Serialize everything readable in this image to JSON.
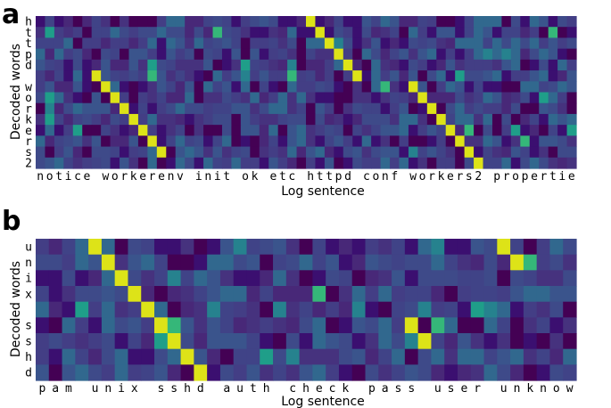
{
  "chart_data": [
    {
      "type": "heatmap",
      "panel_label": "a",
      "xlabel": "Log sentence",
      "ylabel": "Decoded words",
      "x": [
        "n",
        "o",
        "t",
        "i",
        "c",
        "e",
        " ",
        "w",
        "o",
        "r",
        "k",
        "e",
        "r",
        "e",
        "n",
        "v",
        " ",
        "i",
        "n",
        "i",
        "t",
        " ",
        "o",
        "k",
        " ",
        "e",
        "t",
        "c",
        " ",
        "h",
        "t",
        "t",
        "p",
        "d",
        " ",
        "c",
        "o",
        "n",
        "f",
        " ",
        "w",
        "o",
        "r",
        "k",
        "e",
        "r",
        "s",
        "2",
        " ",
        "p",
        "r",
        "o",
        "p",
        "e",
        "r",
        "t",
        "i",
        "e"
      ],
      "y": [
        "h",
        "t",
        "t",
        "p",
        "d",
        " ",
        "w",
        "o",
        "r",
        "k",
        "e",
        "r",
        "s",
        "2"
      ],
      "colormap": "viridis",
      "highlight": [
        [
          0,
          29
        ],
        [
          1,
          30
        ],
        [
          2,
          31
        ],
        [
          3,
          32
        ],
        [
          4,
          33
        ],
        [
          5,
          34
        ],
        [
          6,
          40
        ],
        [
          7,
          41
        ],
        [
          8,
          42
        ],
        [
          9,
          43
        ],
        [
          10,
          44
        ],
        [
          11,
          45
        ],
        [
          12,
          46
        ],
        [
          13,
          47
        ],
        [
          6,
          7
        ],
        [
          7,
          8
        ],
        [
          8,
          9
        ],
        [
          9,
          10
        ],
        [
          10,
          11
        ],
        [
          11,
          12
        ],
        [
          5,
          6
        ],
        [
          12,
          13
        ]
      ],
      "secondary": [
        [
          1,
          1
        ],
        [
          1,
          19
        ],
        [
          4,
          12
        ],
        [
          5,
          12
        ],
        [
          4,
          22
        ],
        [
          5,
          22
        ],
        [
          4,
          27
        ],
        [
          5,
          27
        ],
        [
          2,
          32
        ],
        [
          5,
          45
        ],
        [
          7,
          1
        ],
        [
          6,
          37
        ],
        [
          8,
          1
        ],
        [
          9,
          1
        ],
        [
          10,
          4
        ],
        [
          10,
          46
        ],
        [
          10,
          51
        ],
        [
          3,
          50
        ],
        [
          3,
          48
        ],
        [
          10,
          57
        ],
        [
          11,
          52
        ],
        [
          7,
          54
        ],
        [
          12,
          40
        ],
        [
          1,
          55
        ]
      ]
    },
    {
      "type": "heatmap",
      "panel_label": "b",
      "xlabel": "Log sentence",
      "ylabel": "Decoded words",
      "x": [
        "p",
        "a",
        "m",
        " ",
        "u",
        "n",
        "i",
        "x",
        " ",
        "s",
        "s",
        "h",
        "d",
        " ",
        "a",
        "u",
        "t",
        "h",
        " ",
        "c",
        "h",
        "e",
        "c",
        "k",
        " ",
        "p",
        "a",
        "s",
        "s",
        " ",
        "u",
        "s",
        "e",
        "r",
        " ",
        "u",
        "n",
        "k",
        "n",
        "o",
        "w"
      ],
      "y": [
        "u",
        "n",
        "i",
        "x",
        " ",
        "s",
        "s",
        "h",
        "d"
      ],
      "colormap": "viridis",
      "highlight": [
        [
          0,
          4
        ],
        [
          1,
          5
        ],
        [
          2,
          6
        ],
        [
          3,
          7
        ],
        [
          4,
          8
        ],
        [
          5,
          9
        ],
        [
          6,
          10
        ],
        [
          7,
          11
        ],
        [
          8,
          12
        ],
        [
          4,
          8
        ],
        [
          5,
          28
        ],
        [
          6,
          29
        ],
        [
          0,
          35
        ],
        [
          1,
          36
        ]
      ],
      "secondary": [
        [
          4,
          3
        ],
        [
          4,
          13
        ],
        [
          4,
          18
        ],
        [
          4,
          24
        ],
        [
          4,
          33
        ],
        [
          4,
          34
        ],
        [
          4,
          29
        ],
        [
          5,
          10
        ],
        [
          6,
          9
        ],
        [
          6,
          28
        ],
        [
          5,
          30
        ],
        [
          7,
          17
        ],
        [
          7,
          19
        ],
        [
          0,
          15
        ],
        [
          0,
          30
        ],
        [
          1,
          37
        ],
        [
          2,
          10
        ],
        [
          3,
          21
        ]
      ]
    }
  ]
}
